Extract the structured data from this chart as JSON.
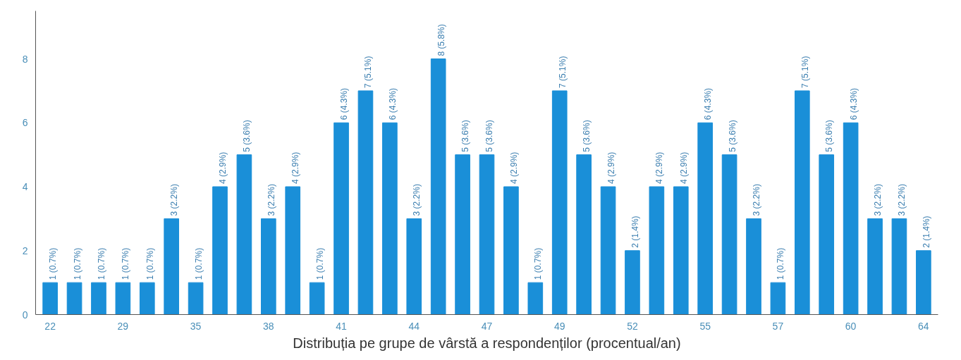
{
  "chart_data": {
    "type": "bar",
    "xlabel": "Distribuția pe grupe de vârstă a respondenților (procentual/an)",
    "categories": [
      "22",
      null,
      null,
      "29",
      null,
      null,
      "35",
      null,
      null,
      "38",
      null,
      null,
      "41",
      null,
      null,
      "44",
      null,
      null,
      "47",
      null,
      null,
      "49",
      null,
      null,
      "52",
      null,
      null,
      "55",
      null,
      null,
      "57",
      null,
      null,
      "60",
      null,
      null,
      "64"
    ],
    "values": [
      1,
      1,
      1,
      1,
      1,
      3,
      1,
      4,
      5,
      3,
      4,
      1,
      6,
      7,
      6,
      3,
      8,
      5,
      5,
      4,
      1,
      7,
      5,
      4,
      2,
      4,
      4,
      6,
      5,
      3,
      1,
      7,
      5,
      6,
      3,
      3,
      2
    ],
    "value_labels": [
      "1 (0.7%)",
      "1 (0.7%)",
      "1 (0.7%)",
      "1 (0.7%)",
      "1 (0.7%)",
      "3 (2.2%)",
      "1 (0.7%)",
      "4 (2.9%)",
      "5 (3.6%)",
      "3 (2.2%)",
      "4 (2.9%)",
      "1 (0.7%)",
      "6 (4.3%)",
      "7 (5.1%)",
      "6 (4.3%)",
      "3 (2.2%)",
      "8 (5.8%)",
      "5 (3.6%)",
      "5 (3.6%)",
      "4 (2.9%)",
      "1 (0.7%)",
      "7 (5.1%)",
      "5 (3.6%)",
      "4 (2.9%)",
      "2 (1.4%)",
      "4 (2.9%)",
      "4 (2.9%)",
      "6 (4.3%)",
      "5 (3.6%)",
      "3 (2.2%)",
      "1 (0.7%)",
      "7 (5.1%)",
      "5 (3.6%)",
      "6 (4.3%)",
      "3 (2.2%)",
      "3 (2.2%)",
      "2 (1.4%)"
    ],
    "color": "#1a8fd8",
    "ylim": [
      0,
      9.5
    ],
    "yticks": [
      0,
      2,
      4,
      6,
      8
    ],
    "grid": false
  }
}
